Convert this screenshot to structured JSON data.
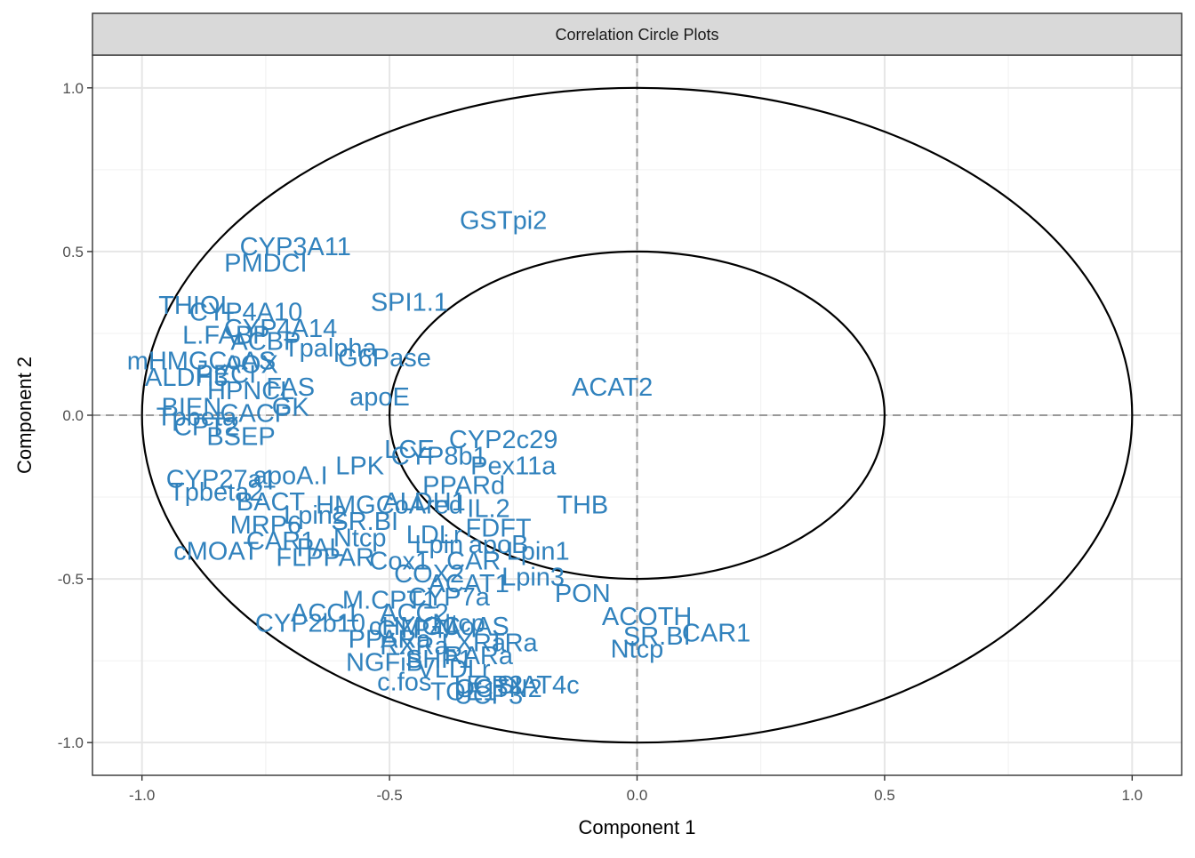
{
  "chart_data": {
    "type": "scatter",
    "title": "Correlation Circle Plots",
    "xlabel": "Component  1",
    "ylabel": "Component  2",
    "xlim": [
      -1.1,
      1.1
    ],
    "ylim": [
      -1.1,
      1.1
    ],
    "x_ticks": [
      "-1.0",
      "-0.5",
      "0.0",
      "0.5",
      "1.0"
    ],
    "y_ticks": [
      "-1.0",
      "-0.5",
      "0.0",
      "0.5",
      "1.0"
    ],
    "circles": [
      1.0,
      0.5
    ],
    "grid": true,
    "reference_lines": {
      "x": 0,
      "y": 0,
      "style": "dashed"
    },
    "label_color": "#3182bd",
    "points": [
      {
        "label": "GSTpi2",
        "x": -0.27,
        "y": 0.59
      },
      {
        "label": "CYP3A11",
        "x": -0.69,
        "y": 0.51
      },
      {
        "label": "PMDCI",
        "x": -0.75,
        "y": 0.46
      },
      {
        "label": "THIOL",
        "x": -0.89,
        "y": 0.33
      },
      {
        "label": "CYP4A10",
        "x": -0.79,
        "y": 0.31
      },
      {
        "label": "SPI1.1",
        "x": -0.46,
        "y": 0.34
      },
      {
        "label": "CYP4A14",
        "x": -0.72,
        "y": 0.26
      },
      {
        "label": "L.FABP",
        "x": -0.83,
        "y": 0.24
      },
      {
        "label": "ACBP",
        "x": -0.75,
        "y": 0.22
      },
      {
        "label": "Tpalpha",
        "x": -0.62,
        "y": 0.2
      },
      {
        "label": "mHMGCoAS",
        "x": -0.88,
        "y": 0.16
      },
      {
        "label": "G6Pase",
        "x": -0.51,
        "y": 0.17
      },
      {
        "label": "AOX",
        "x": -0.78,
        "y": 0.15
      },
      {
        "label": "PECI",
        "x": -0.83,
        "y": 0.12
      },
      {
        "label": "ALDH3",
        "x": -0.91,
        "y": 0.11
      },
      {
        "label": "HPNCL",
        "x": -0.78,
        "y": 0.07
      },
      {
        "label": "FAS",
        "x": -0.7,
        "y": 0.08
      },
      {
        "label": "apoE",
        "x": -0.52,
        "y": 0.05
      },
      {
        "label": "ACAT2",
        "x": -0.05,
        "y": 0.08
      },
      {
        "label": "BIEN",
        "x": -0.9,
        "y": 0.02
      },
      {
        "label": "Tpbeta",
        "x": -0.89,
        "y": -0.01
      },
      {
        "label": "CACP",
        "x": -0.77,
        "y": 0.0
      },
      {
        "label": "GK",
        "x": -0.7,
        "y": 0.02
      },
      {
        "label": "CPT2",
        "x": -0.87,
        "y": -0.04
      },
      {
        "label": "BSEP",
        "x": -0.8,
        "y": -0.07
      },
      {
        "label": "CYP2c29",
        "x": -0.27,
        "y": -0.08
      },
      {
        "label": "LCE",
        "x": -0.46,
        "y": -0.11
      },
      {
        "label": "CYP8b1",
        "x": -0.4,
        "y": -0.13
      },
      {
        "label": "Pex11a",
        "x": -0.25,
        "y": -0.16
      },
      {
        "label": "LPK",
        "x": -0.56,
        "y": -0.16
      },
      {
        "label": "CYP27a1",
        "x": -0.84,
        "y": -0.2
      },
      {
        "label": "apoA.I",
        "x": -0.7,
        "y": -0.19
      },
      {
        "label": "PPARd",
        "x": -0.35,
        "y": -0.22
      },
      {
        "label": "Tpbeta2",
        "x": -0.85,
        "y": -0.24
      },
      {
        "label": "BACT",
        "x": -0.74,
        "y": -0.27
      },
      {
        "label": "HMGCoAred",
        "x": -0.5,
        "y": -0.28
      },
      {
        "label": "ALDH1",
        "x": -0.43,
        "y": -0.27
      },
      {
        "label": "IL.2",
        "x": -0.3,
        "y": -0.29
      },
      {
        "label": "THB",
        "x": -0.11,
        "y": -0.28
      },
      {
        "label": "MRP6",
        "x": -0.75,
        "y": -0.34
      },
      {
        "label": "Lpin2",
        "x": -0.65,
        "y": -0.31
      },
      {
        "label": "SR.BI",
        "x": -0.55,
        "y": -0.33
      },
      {
        "label": "LDLr",
        "x": -0.41,
        "y": -0.37
      },
      {
        "label": "FDFT",
        "x": -0.28,
        "y": -0.35
      },
      {
        "label": "cMOAT",
        "x": -0.85,
        "y": -0.42
      },
      {
        "label": "CAR1",
        "x": -0.72,
        "y": -0.39
      },
      {
        "label": "PAL",
        "x": -0.64,
        "y": -0.41
      },
      {
        "label": "Ntcp",
        "x": -0.56,
        "y": -0.38
      },
      {
        "label": "Lpin",
        "x": -0.4,
        "y": -0.4
      },
      {
        "label": "apoB",
        "x": -0.28,
        "y": -0.4
      },
      {
        "label": "Lpin1",
        "x": -0.2,
        "y": -0.42
      },
      {
        "label": "FLPPAR",
        "x": -0.63,
        "y": -0.44
      },
      {
        "label": "Cox1",
        "x": -0.48,
        "y": -0.45
      },
      {
        "label": "CAR",
        "x": -0.33,
        "y": -0.45
      },
      {
        "label": "COX2",
        "x": -0.42,
        "y": -0.49
      },
      {
        "label": "Lpin3",
        "x": -0.21,
        "y": -0.5
      },
      {
        "label": "ACAT1",
        "x": -0.34,
        "y": -0.52
      },
      {
        "label": "M.CPT1",
        "x": -0.5,
        "y": -0.57
      },
      {
        "label": "CYP7a",
        "x": -0.38,
        "y": -0.56
      },
      {
        "label": "PON",
        "x": -0.11,
        "y": -0.55
      },
      {
        "label": "ACC1",
        "x": -0.63,
        "y": -0.61
      },
      {
        "label": "ACC2",
        "x": -0.45,
        "y": -0.61
      },
      {
        "label": "ACOTH",
        "x": 0.02,
        "y": -0.62
      },
      {
        "label": "CYP2b10",
        "x": -0.66,
        "y": -0.64
      },
      {
        "label": "Ntcp",
        "x": -0.36,
        "y": -0.64
      },
      {
        "label": "CYP4A",
        "x": -0.44,
        "y": -0.66
      },
      {
        "label": "cHMGCoAS",
        "x": -0.4,
        "y": -0.65
      },
      {
        "label": "SR.BI",
        "x": 0.04,
        "y": -0.68
      },
      {
        "label": "CAR1",
        "x": 0.16,
        "y": -0.67
      },
      {
        "label": "PPARa",
        "x": -0.5,
        "y": -0.69
      },
      {
        "label": "RXRa",
        "x": -0.45,
        "y": -0.71
      },
      {
        "label": "LXRa",
        "x": -0.33,
        "y": -0.7
      },
      {
        "label": "TRa",
        "x": -0.25,
        "y": -0.7
      },
      {
        "label": "Ntcp",
        "x": 0.0,
        "y": -0.72
      },
      {
        "label": "NGFiB",
        "x": -0.51,
        "y": -0.76
      },
      {
        "label": "SHP1",
        "x": -0.4,
        "y": -0.75
      },
      {
        "label": "RARa",
        "x": -0.32,
        "y": -0.74
      },
      {
        "label": "VLDLr",
        "x": -0.37,
        "y": -0.78
      },
      {
        "label": "c.fos",
        "x": -0.47,
        "y": -0.82
      },
      {
        "label": "SIAT4c",
        "x": -0.2,
        "y": -0.83
      },
      {
        "label": "UCP2",
        "x": -0.3,
        "y": -0.83
      },
      {
        "label": "OCTN2",
        "x": -0.28,
        "y": -0.84
      },
      {
        "label": "TOE1",
        "x": -0.35,
        "y": -0.85
      },
      {
        "label": "UCP3",
        "x": -0.3,
        "y": -0.86
      }
    ]
  }
}
